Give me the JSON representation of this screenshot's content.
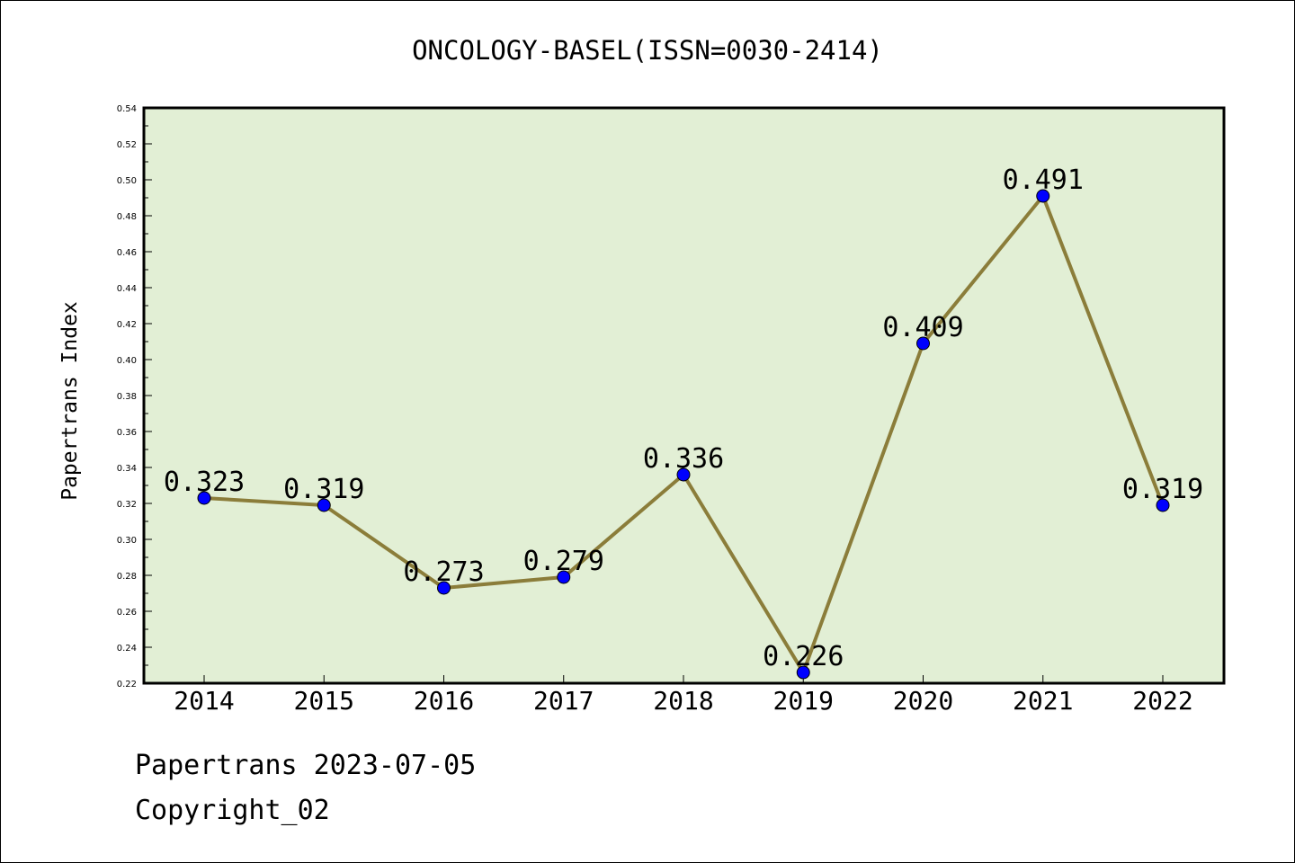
{
  "chart_data": {
    "type": "line",
    "title": "ONCOLOGY-BASEL(ISSN=0030-2414)",
    "ylabel": "Papertrans Index",
    "xlabel": "",
    "categories": [
      "2014",
      "2015",
      "2016",
      "2017",
      "2018",
      "2019",
      "2020",
      "2021",
      "2022"
    ],
    "series": [
      {
        "values": [
          0.323,
          0.319,
          0.273,
          0.279,
          0.336,
          0.226,
          0.409,
          0.491,
          0.319
        ],
        "labels": [
          "0.323",
          "0.319",
          "0.273",
          "0.279",
          "0.336",
          "0.226",
          "0.409",
          "0.491",
          "0.319"
        ]
      }
    ],
    "ylim": [
      0.22,
      0.54
    ],
    "yticks": [
      "0.22",
      "0.24",
      "0.26",
      "0.28",
      "0.30",
      "0.32",
      "0.34",
      "0.36",
      "0.38",
      "0.40",
      "0.42",
      "0.44",
      "0.46",
      "0.48",
      "0.50",
      "0.52",
      "0.54"
    ],
    "grid": false,
    "colors": {
      "plot_background": "#e2efd5",
      "line": "#8b7d3a",
      "marker": "#0000ff"
    }
  },
  "footer": {
    "date_line": "Papertrans 2023-07-05",
    "copyright": "Copyright_02"
  }
}
